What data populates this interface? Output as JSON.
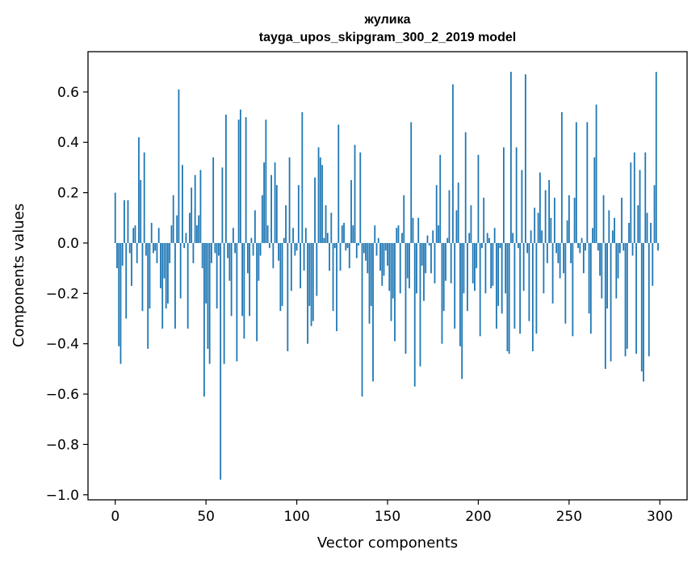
{
  "chart_data": {
    "type": "bar",
    "title": "жулика",
    "subtitle": "tayga_upos_skipgram_300_2_2019 model",
    "xlabel": "Vector components",
    "ylabel": "Components values",
    "xlim": [
      -15,
      315
    ],
    "ylim": [
      -1.02,
      0.76
    ],
    "xticks": [
      0,
      50,
      100,
      150,
      200,
      250,
      300
    ],
    "yticks": [
      -1.0,
      -0.8,
      -0.6,
      -0.4,
      -0.2,
      0.0,
      0.2,
      0.4,
      0.6
    ],
    "ytick_labels": [
      "−1.0",
      "−0.8",
      "−0.6",
      "−0.4",
      "−0.2",
      "0.0",
      "0.2",
      "0.4",
      "0.6"
    ],
    "grid": false,
    "bar_color": "#1f77b4",
    "x": "0..299 (component index)",
    "values": [
      0.2,
      -0.1,
      -0.41,
      -0.48,
      -0.09,
      0.17,
      -0.3,
      0.17,
      -0.04,
      -0.17,
      0.06,
      0.07,
      -0.08,
      0.42,
      0.25,
      -0.27,
      0.36,
      -0.05,
      -0.42,
      -0.26,
      0.08,
      -0.04,
      -0.03,
      -0.08,
      0.06,
      -0.18,
      -0.34,
      -0.14,
      -0.26,
      -0.24,
      -0.08,
      0.07,
      0.19,
      -0.34,
      0.11,
      0.61,
      -0.22,
      0.31,
      -0.02,
      0.04,
      -0.34,
      0.12,
      0.22,
      -0.08,
      0.27,
      0.07,
      0.11,
      0.29,
      -0.1,
      -0.61,
      -0.24,
      -0.42,
      -0.48,
      -0.08,
      0.34,
      -0.04,
      -0.26,
      -0.05,
      -0.94,
      0.3,
      -0.48,
      0.51,
      -0.06,
      -0.15,
      -0.29,
      0.06,
      -0.04,
      -0.47,
      0.49,
      0.53,
      -0.29,
      -0.38,
      0.5,
      -0.12,
      -0.29,
      0.02,
      -0.05,
      0.13,
      -0.39,
      -0.15,
      -0.05,
      0.19,
      0.32,
      0.49,
      0.07,
      -0.02,
      0.27,
      -0.1,
      0.32,
      0.23,
      -0.07,
      -0.27,
      -0.25,
      0.02,
      0.15,
      -0.43,
      0.34,
      -0.19,
      0.06,
      -0.05,
      -0.03,
      0.23,
      -0.18,
      0.52,
      -0.11,
      0.06,
      -0.4,
      -0.25,
      -0.33,
      -0.31,
      0.26,
      -0.21,
      0.38,
      0.34,
      0.31,
      0.02,
      0.15,
      0.04,
      -0.11,
      0.12,
      -0.27,
      -0.02,
      -0.35,
      0.47,
      -0.11,
      0.07,
      0.08,
      -0.03,
      -0.02,
      -0.1,
      0.25,
      0.07,
      0.39,
      -0.06,
      -0.01,
      0.36,
      -0.61,
      -0.04,
      -0.07,
      -0.12,
      -0.32,
      -0.25,
      -0.55,
      0.07,
      -0.05,
      0.02,
      -0.11,
      -0.17,
      -0.13,
      -0.03,
      -0.09,
      -0.19,
      -0.31,
      -0.22,
      -0.39,
      0.06,
      0.07,
      -0.2,
      0.04,
      0.19,
      -0.44,
      -0.14,
      -0.18,
      0.48,
      0.1,
      -0.57,
      -0.2,
      0.1,
      -0.49,
      -0.09,
      -0.23,
      -0.12,
      0.03,
      -0.01,
      -0.12,
      0.05,
      -0.16,
      0.23,
      0.07,
      0.35,
      -0.4,
      -0.27,
      -0.15,
      0.02,
      0.21,
      -0.16,
      0.63,
      -0.34,
      0.13,
      0.24,
      -0.41,
      -0.54,
      -0.2,
      0.44,
      -0.27,
      0.04,
      0.15,
      -0.16,
      -0.19,
      -0.1,
      0.35,
      -0.37,
      -0.02,
      0.18,
      -0.2,
      0.04,
      0.02,
      -0.18,
      -0.17,
      0.06,
      -0.34,
      -0.25,
      -0.02,
      -0.28,
      0.38,
      -0.2,
      -0.43,
      -0.44,
      0.68,
      0.04,
      -0.34,
      0.38,
      -0.02,
      -0.36,
      0.29,
      -0.19,
      0.67,
      -0.04,
      -0.31,
      0.05,
      -0.43,
      0.14,
      -0.36,
      0.12,
      0.28,
      0.05,
      -0.2,
      0.21,
      -0.08,
      0.25,
      0.1,
      -0.24,
      0.18,
      -0.04,
      -0.08,
      -0.14,
      0.52,
      -0.12,
      -0.32,
      0.09,
      0.19,
      -0.08,
      -0.37,
      0.18,
      0.48,
      -0.02,
      -0.04,
      0.02,
      -0.12,
      -0.03,
      0.48,
      -0.28,
      -0.36,
      0.06,
      0.34,
      0.55,
      -0.03,
      -0.13,
      -0.22,
      0.19,
      -0.5,
      -0.26,
      0.13,
      -0.47,
      0.05,
      0.1,
      -0.22,
      -0.14,
      -0.04,
      0.18,
      -0.03,
      -0.45,
      -0.42,
      0.08,
      0.32,
      -0.05,
      0.36,
      -0.44,
      0.15,
      0.29,
      -0.51,
      -0.55,
      0.36,
      0.12,
      -0.45,
      0.08,
      -0.17,
      0.23,
      0.68,
      -0.03
    ]
  }
}
